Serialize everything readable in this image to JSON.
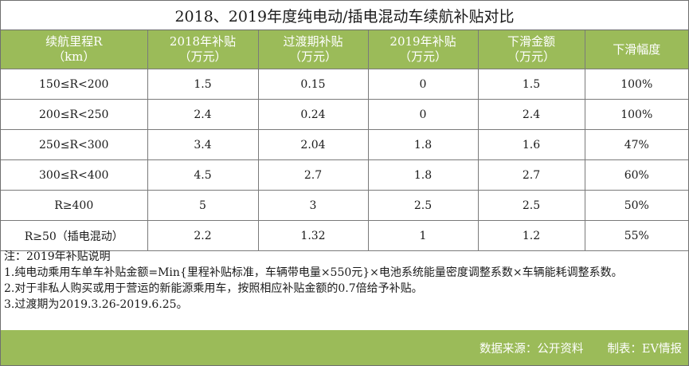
{
  "title": "2018、2019年度纯电动/插电混动车续航补贴对比",
  "headers": [
    {
      "line1": "续航里程R",
      "line2": "（km）"
    },
    {
      "line1": "2018年补贴",
      "line2": "（万元）"
    },
    {
      "line1": "过渡期补贴",
      "line2": "（万元）"
    },
    {
      "line1": "2019年补贴",
      "line2": "（万元）"
    },
    {
      "line1": "下滑金额",
      "line2": "（万元）"
    },
    {
      "line1": "下滑幅度",
      "line2": ""
    }
  ],
  "rows": [
    [
      "150≤R<200",
      "1.5",
      "0.15",
      "0",
      "1.5",
      "100%"
    ],
    [
      "200≤R<250",
      "2.4",
      "0.24",
      "0",
      "2.4",
      "100%"
    ],
    [
      "250≤R<300",
      "3.4",
      "2.04",
      "1.8",
      "1.6",
      "47%"
    ],
    [
      "300≤R<400",
      "4.5",
      "2.7",
      "1.8",
      "2.7",
      "60%"
    ],
    [
      "R≥400",
      "5",
      "3",
      "2.5",
      "2.5",
      "50%"
    ],
    [
      "R≥50（插电混动）",
      "2.2",
      "1.32",
      "1",
      "1.2",
      "55%"
    ]
  ],
  "notes": [
    "注：2019年补贴说明",
    "1.纯电动乘用车单车补贴金额=Min{里程补贴标准，车辆带电量×550元}×电池系统能量密度调整系数×车辆能耗调整系数。",
    "2.对于非私人购买或用于营运的新能源乘用车，按照相应补贴金额的0.7倍给予补贴。",
    "3.过渡期为2019.3.26-2019.6.25。"
  ],
  "footer": {
    "source": "数据来源：公开资料",
    "author": "制表：EV情报"
  },
  "colors": {
    "header_green": "#9bbb59",
    "border": "#7a7a7a"
  }
}
